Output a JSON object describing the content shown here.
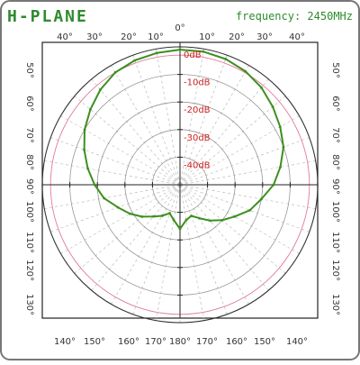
{
  "header": {
    "title": "H-PLANE",
    "frequency": "frequency: 2450MHz"
  },
  "colors": {
    "accent_green": "#2e8b2e",
    "trace": "#3d8f1f",
    "db_label": "#cc2222",
    "reference_circle": "#e07aa0"
  },
  "chart_data": {
    "type": "line",
    "coordinate_system": "polar",
    "title": "H-PLANE",
    "subtitle": "frequency: 2450MHz",
    "radial_unit": "dB",
    "radial_range": [
      -50,
      0
    ],
    "radial_labels": [
      "0dB",
      "-10dB",
      "-20dB",
      "-30dB",
      "-40dB"
    ],
    "top_tick_labels": [
      "40°",
      "30°",
      "20°",
      "10°",
      "0°",
      "10°",
      "20°",
      "30°",
      "40°"
    ],
    "bottom_tick_labels": [
      "140°",
      "150°",
      "160°",
      "170°",
      "180°",
      "170°",
      "160°",
      "150°",
      "140°"
    ],
    "left_tick_labels": [
      "50°",
      "60°",
      "70°",
      "80°",
      "90°",
      "100°",
      "110°",
      "120°",
      "130°"
    ],
    "right_tick_labels": [
      "50°",
      "60°",
      "70°",
      "80°",
      "90°",
      "100°",
      "110°",
      "120°",
      "130°"
    ],
    "grid": true,
    "reference_level_db": -3,
    "series": [
      {
        "angle_deg": [
          0,
          10,
          20,
          30,
          40,
          50,
          60,
          70,
          80,
          90,
          100,
          110,
          120,
          130,
          140,
          150,
          160,
          170,
          180,
          190,
          200,
          210,
          220,
          230,
          240,
          250,
          260,
          270,
          280,
          290,
          300,
          310,
          320,
          330,
          340,
          350
        ],
        "gain_db": [
          -1,
          -1,
          -1.5,
          -2.5,
          -4,
          -6,
          -8,
          -10,
          -13,
          -16,
          -20,
          -23,
          -27,
          -30,
          -33,
          -36,
          -38,
          -37,
          -34,
          -37,
          -39,
          -37,
          -35,
          -32,
          -29,
          -26,
          -22,
          -19,
          -16,
          -13,
          -10,
          -7.5,
          -5,
          -3,
          -2,
          -1.5
        ]
      }
    ]
  }
}
